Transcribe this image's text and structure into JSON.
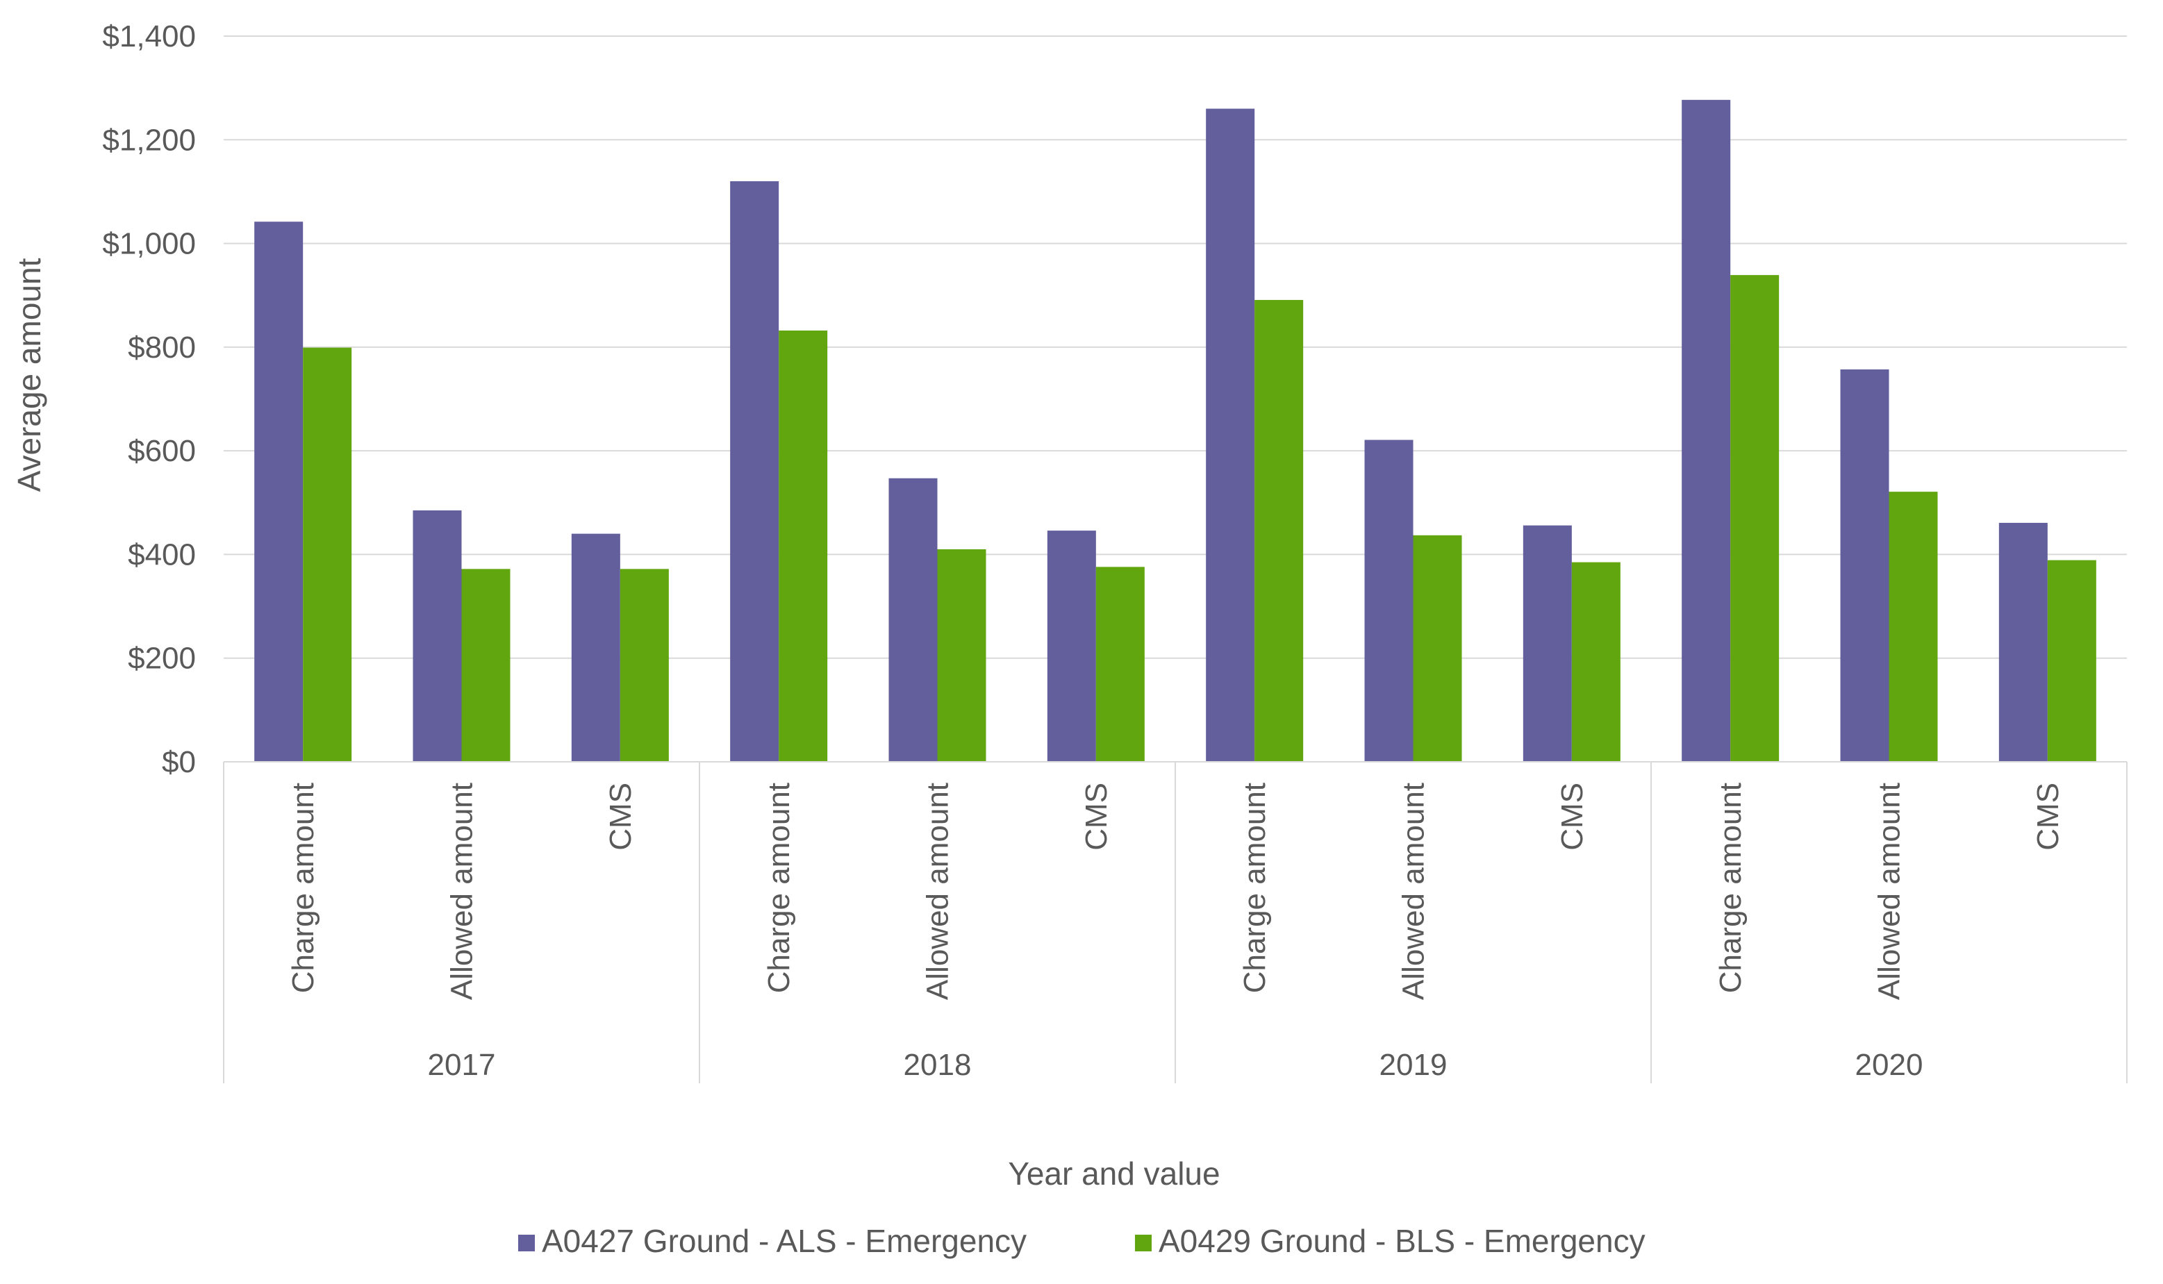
{
  "chart_data": {
    "type": "bar",
    "title": "",
    "xlabel": "Year and value",
    "ylabel": "Average amount",
    "ylim": [
      0,
      1400
    ],
    "ytick_step": 200,
    "ytick_labels": [
      "$0",
      "$200",
      "$400",
      "$600",
      "$800",
      "$1,000",
      "$1,200",
      "$1,400"
    ],
    "groups": [
      {
        "label": "2017",
        "categories": [
          "Charge amount",
          "Allowed amount",
          "CMS"
        ]
      },
      {
        "label": "2018",
        "categories": [
          "Charge amount",
          "Allowed amount",
          "CMS"
        ]
      },
      {
        "label": "2019",
        "categories": [
          "Charge amount",
          "Allowed amount",
          "CMS"
        ]
      },
      {
        "label": "2020",
        "categories": [
          "Charge amount",
          "Allowed amount",
          "CMS"
        ]
      }
    ],
    "series": [
      {
        "name": "A0427 Ground - ALS - Emergency",
        "color": "#635f9c",
        "values": [
          1042,
          485,
          440,
          1120,
          547,
          446,
          1260,
          621,
          456,
          1277,
          757,
          461
        ]
      },
      {
        "name": "A0429 Ground - BLS - Emergency",
        "color": "#62a60f",
        "values": [
          799,
          372,
          372,
          832,
          410,
          376,
          891,
          437,
          385,
          939,
          521,
          389
        ]
      }
    ],
    "legend_position": "bottom",
    "grid": true,
    "gridline_color": "#d9d9d9"
  }
}
